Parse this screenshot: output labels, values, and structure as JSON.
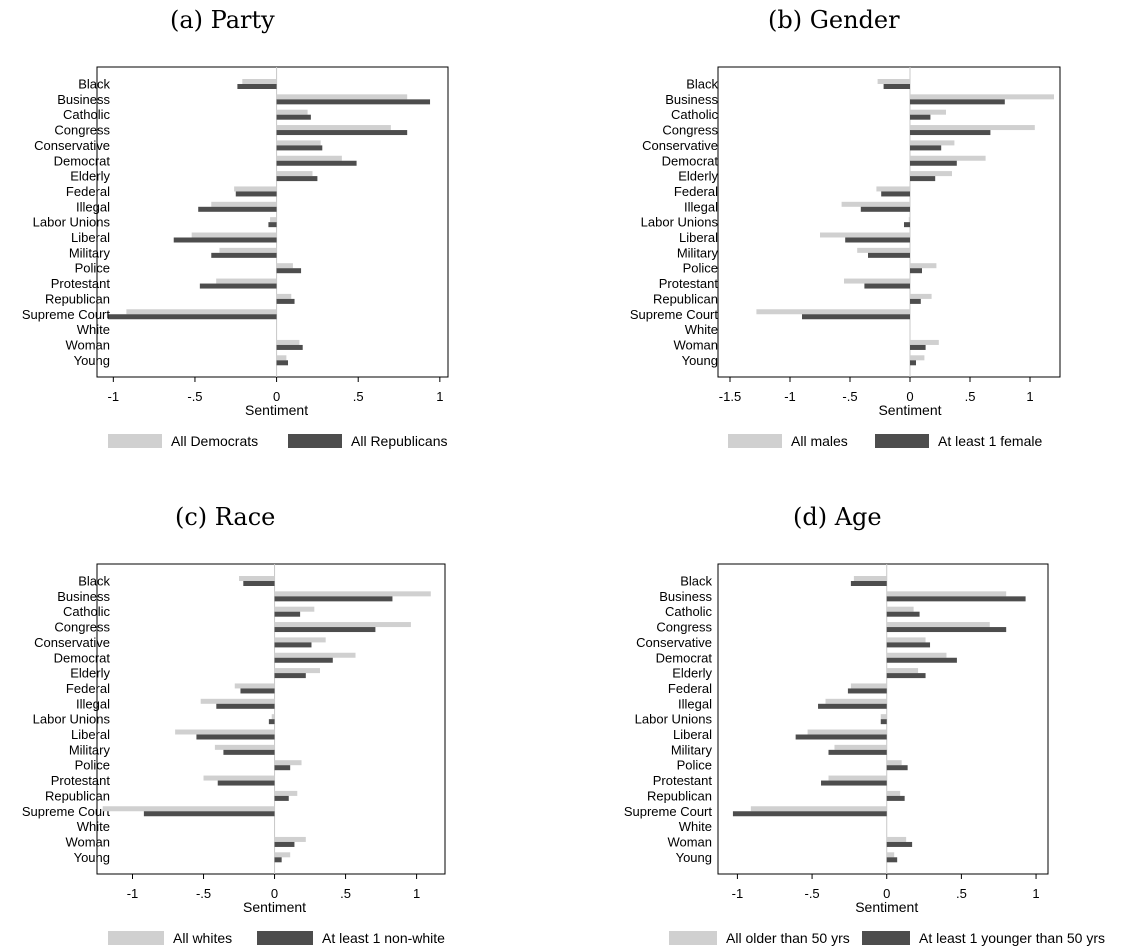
{
  "colors": {
    "series1": "#d0d0d0",
    "series2": "#4d4d4d",
    "frame": "#000000",
    "zero_line": "#c8c8c8"
  },
  "chart_data": [
    {
      "type": "bar",
      "orientation": "horizontal",
      "title": "(a) Party",
      "xlabel": "Sentiment",
      "xlim": [
        -1.1,
        1.05
      ],
      "xticks": [
        -1,
        -0.5,
        0,
        0.5,
        1
      ],
      "xtick_labels": [
        "-1",
        "-.5",
        "0",
        ".5",
        "1"
      ],
      "categories": [
        "Black",
        "Business",
        "Catholic",
        "Congress",
        "Conservative",
        "Democrat",
        "Elderly",
        "Federal",
        "Illegal",
        "Labor Unions",
        "Liberal",
        "Military",
        "Police",
        "Protestant",
        "Republican",
        "Supreme Court",
        "White",
        "Woman",
        "Young"
      ],
      "series": [
        {
          "name": "All Democrats",
          "values": [
            -0.21,
            0.8,
            0.19,
            0.7,
            0.27,
            0.4,
            0.22,
            -0.26,
            -0.4,
            -0.04,
            -0.52,
            -0.35,
            0.1,
            -0.37,
            0.09,
            -0.92,
            0.0,
            0.14,
            0.06
          ]
        },
        {
          "name": "All Republicans",
          "values": [
            -0.24,
            0.94,
            0.21,
            0.8,
            0.28,
            0.49,
            0.25,
            -0.25,
            -0.48,
            -0.05,
            -0.63,
            -0.4,
            0.15,
            -0.47,
            0.11,
            -1.03,
            0.0,
            0.16,
            0.07
          ]
        }
      ],
      "legend_position": "bottom",
      "grid": false
    },
    {
      "type": "bar",
      "orientation": "horizontal",
      "title": "(b) Gender",
      "xlabel": "Sentiment",
      "xlim": [
        -1.6,
        1.25
      ],
      "xticks": [
        -1.5,
        -1,
        -0.5,
        0,
        0.5,
        1
      ],
      "xtick_labels": [
        "-1.5",
        "-1",
        "-.5",
        "0",
        ".5",
        "1"
      ],
      "categories": [
        "Black",
        "Business",
        "Catholic",
        "Congress",
        "Conservative",
        "Democrat",
        "Elderly",
        "Federal",
        "Illegal",
        "Labor Unions",
        "Liberal",
        "Military",
        "Police",
        "Protestant",
        "Republican",
        "Supreme Court",
        "White",
        "Woman",
        "Young"
      ],
      "series": [
        {
          "name": "All males",
          "values": [
            -0.27,
            1.2,
            0.3,
            1.04,
            0.37,
            0.63,
            0.35,
            -0.28,
            -0.57,
            -0.01,
            -0.75,
            -0.44,
            0.22,
            -0.55,
            0.18,
            -1.28,
            0.0,
            0.24,
            0.12
          ]
        },
        {
          "name": "At least 1 female",
          "values": [
            -0.22,
            0.79,
            0.17,
            0.67,
            0.26,
            0.39,
            0.21,
            -0.24,
            -0.41,
            -0.05,
            -0.54,
            -0.35,
            0.1,
            -0.38,
            0.09,
            -0.9,
            0.0,
            0.13,
            0.05
          ]
        }
      ],
      "legend_position": "bottom",
      "grid": false
    },
    {
      "type": "bar",
      "orientation": "horizontal",
      "title": "(c) Race",
      "xlabel": "Sentiment",
      "xlim": [
        -1.25,
        1.2
      ],
      "xticks": [
        -1,
        -0.5,
        0,
        0.5,
        1
      ],
      "xtick_labels": [
        "-1",
        "-.5",
        "0",
        ".5",
        "1"
      ],
      "categories": [
        "Black",
        "Business",
        "Catholic",
        "Congress",
        "Conservative",
        "Democrat",
        "Elderly",
        "Federal",
        "Illegal",
        "Labor Unions",
        "Liberal",
        "Military",
        "Police",
        "Protestant",
        "Republican",
        "Supreme Court",
        "White",
        "Woman",
        "Young"
      ],
      "series": [
        {
          "name": "All whites",
          "values": [
            -0.25,
            1.1,
            0.28,
            0.96,
            0.36,
            0.57,
            0.32,
            -0.28,
            -0.52,
            -0.02,
            -0.7,
            -0.42,
            0.19,
            -0.5,
            0.16,
            -1.21,
            0.0,
            0.22,
            0.11
          ]
        },
        {
          "name": "At least 1 non-white",
          "values": [
            -0.22,
            0.83,
            0.18,
            0.71,
            0.26,
            0.41,
            0.22,
            -0.24,
            -0.41,
            -0.04,
            -0.55,
            -0.36,
            0.11,
            -0.4,
            0.1,
            -0.92,
            0.0,
            0.14,
            0.05
          ]
        }
      ],
      "legend_position": "bottom",
      "grid": false
    },
    {
      "type": "bar",
      "orientation": "horizontal",
      "title": "(d) Age",
      "xlabel": "Sentiment",
      "xlim": [
        -1.13,
        1.08
      ],
      "xticks": [
        -1,
        -0.5,
        0,
        0.5,
        1
      ],
      "xtick_labels": [
        "-1",
        "-.5",
        "0",
        ".5",
        "1"
      ],
      "categories": [
        "Black",
        "Business",
        "Catholic",
        "Congress",
        "Conservative",
        "Democrat",
        "Elderly",
        "Federal",
        "Illegal",
        "Labor Unions",
        "Liberal",
        "Military",
        "Police",
        "Protestant",
        "Republican",
        "Supreme Court",
        "White",
        "Woman",
        "Young"
      ],
      "series": [
        {
          "name": "All older than 50 yrs",
          "values": [
            -0.22,
            0.8,
            0.18,
            0.69,
            0.26,
            0.4,
            0.21,
            -0.24,
            -0.41,
            -0.04,
            -0.53,
            -0.35,
            0.1,
            -0.39,
            0.09,
            -0.91,
            0.0,
            0.13,
            0.05
          ]
        },
        {
          "name": "At least 1 younger than 50 yrs",
          "values": [
            -0.24,
            0.93,
            0.22,
            0.8,
            0.29,
            0.47,
            0.26,
            -0.26,
            -0.46,
            -0.04,
            -0.61,
            -0.39,
            0.14,
            -0.44,
            0.12,
            -1.03,
            0.0,
            0.17,
            0.07
          ]
        }
      ],
      "legend_position": "bottom",
      "grid": false
    }
  ]
}
